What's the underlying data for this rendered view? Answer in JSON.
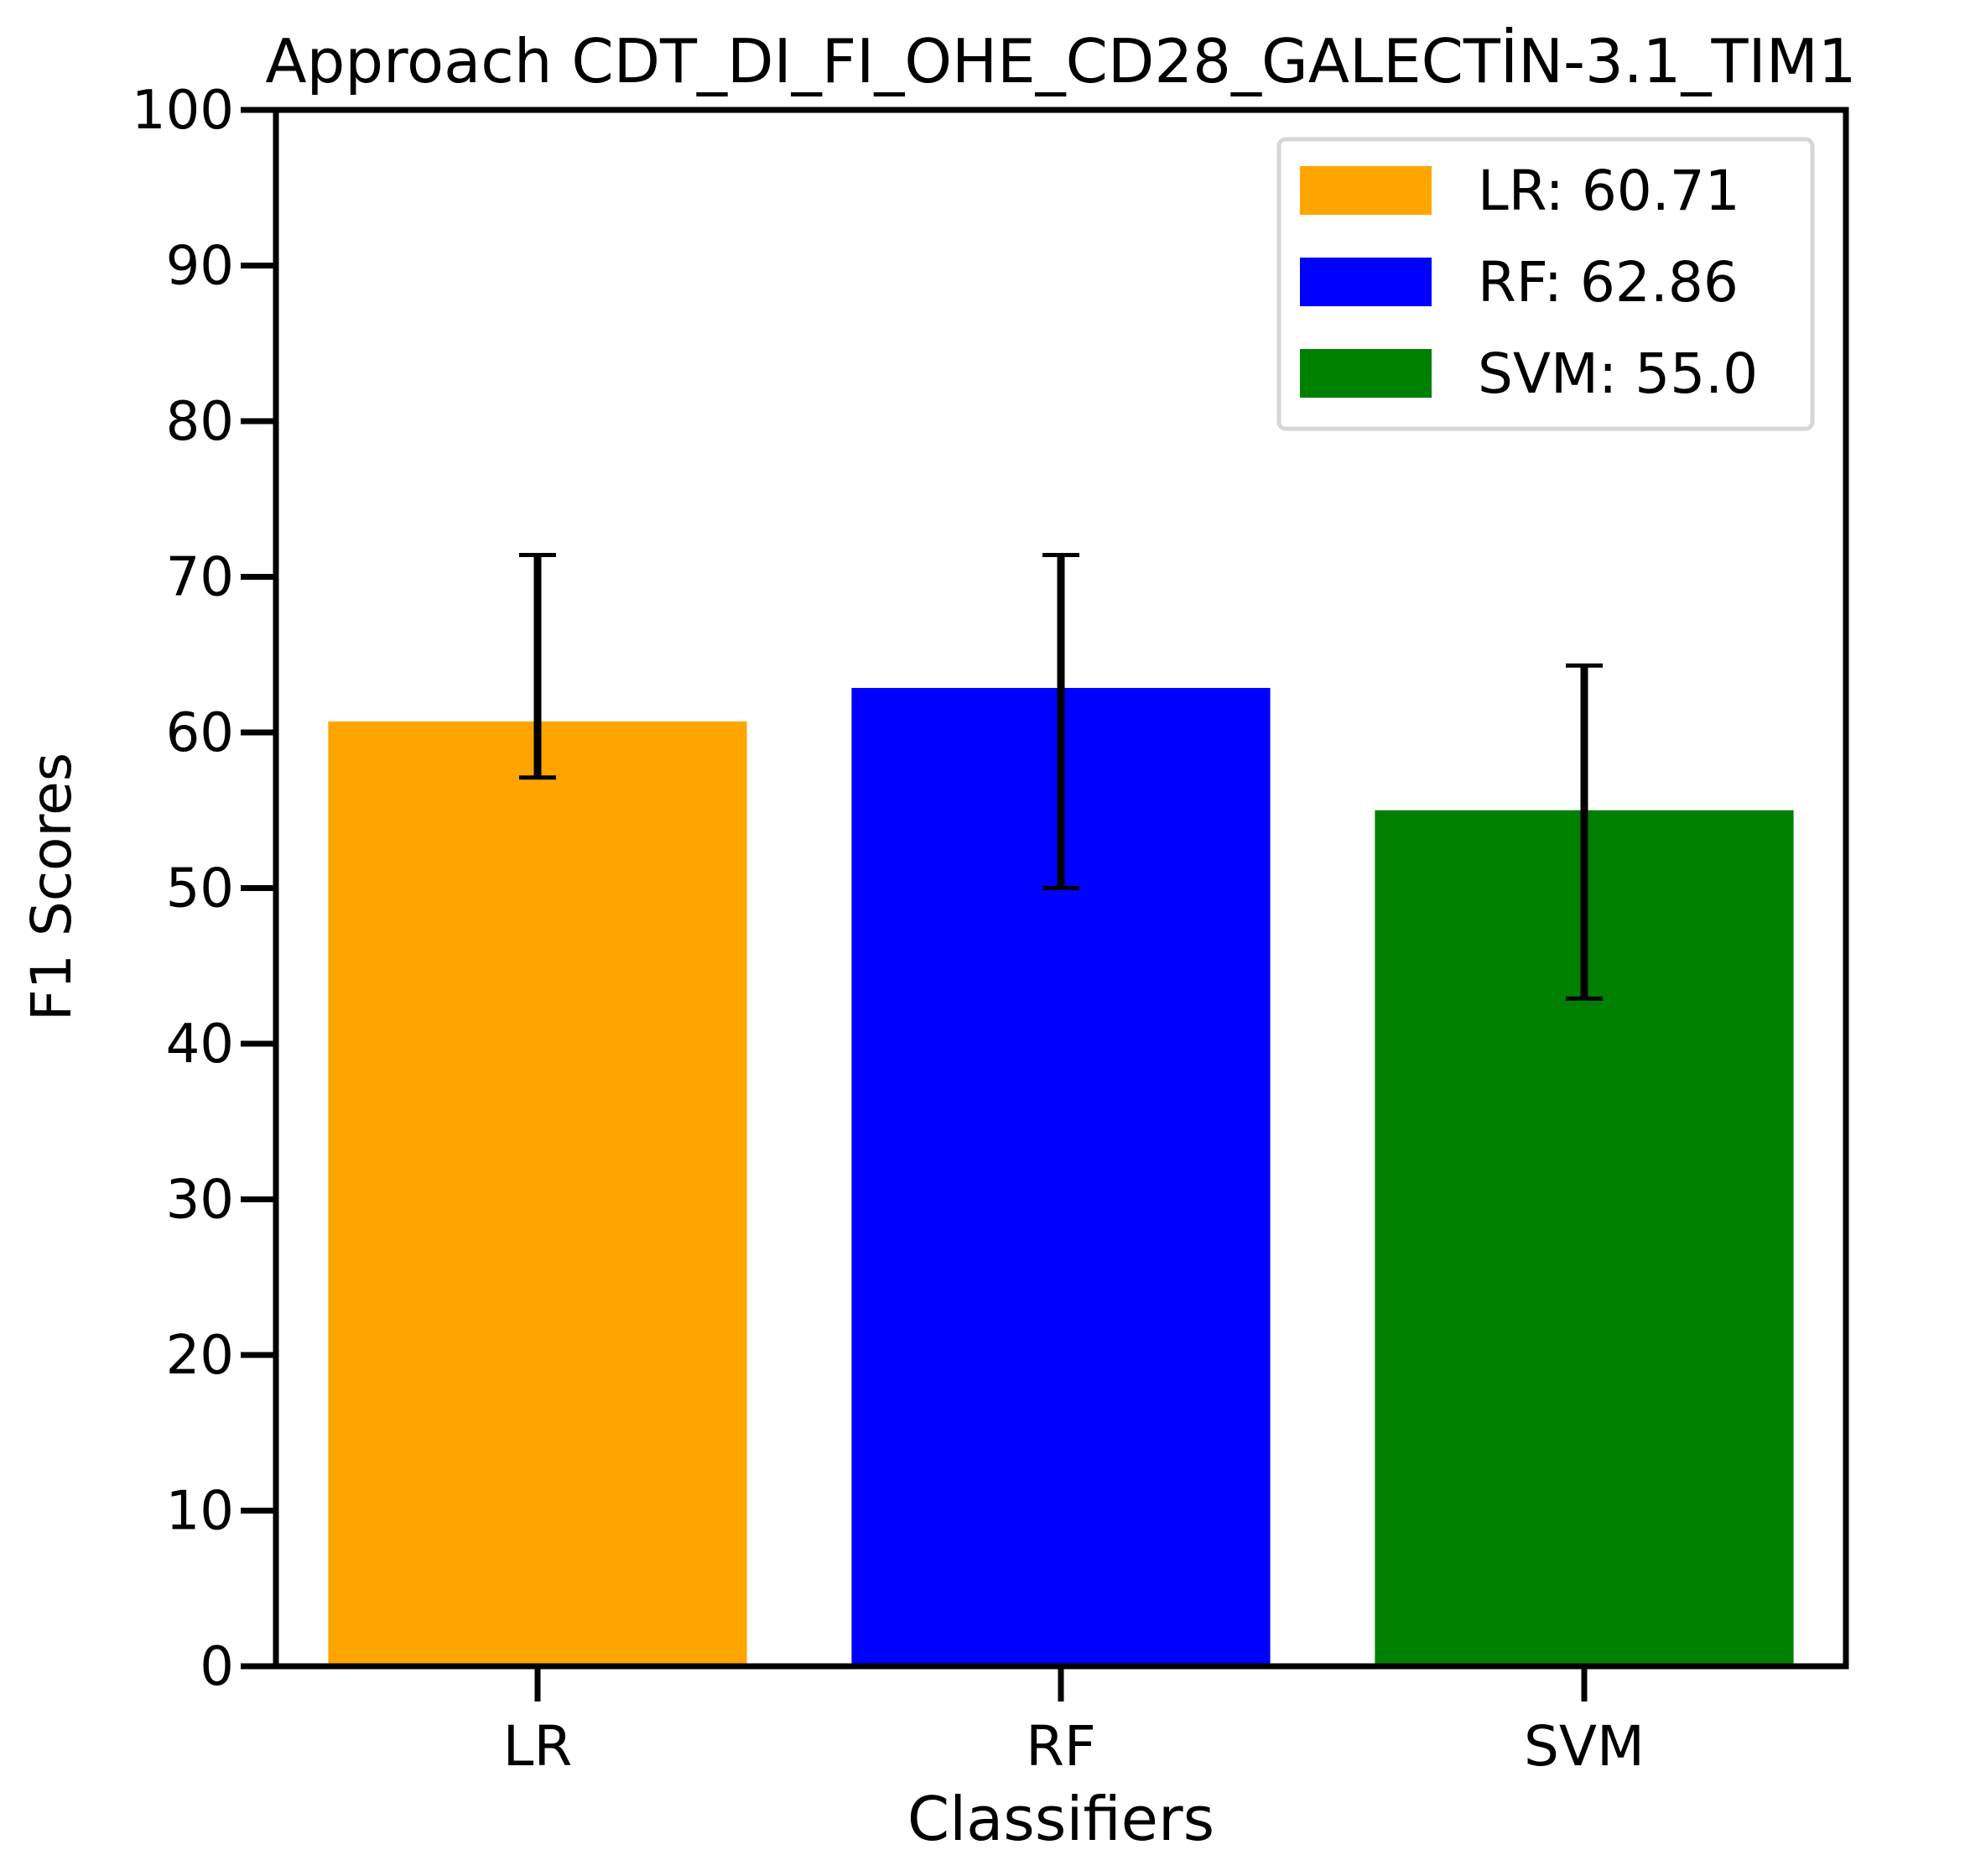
{
  "chart_data": {
    "type": "bar",
    "title": "Approach CDT_DI_FI_OHE_CD28_GALECTİN-3.1_TIM1",
    "xlabel": "Classifiers",
    "ylabel": "F1 Scores",
    "ylim": [
      0,
      100
    ],
    "yticks": [
      "0",
      "10",
      "20",
      "30",
      "40",
      "50",
      "60",
      "70",
      "80",
      "90",
      "100"
    ],
    "categories": [
      "LR",
      "RF",
      "SVM"
    ],
    "values": [
      60.71,
      62.86,
      55.0
    ],
    "error_low": [
      57.1,
      50.0,
      42.9
    ],
    "error_high": [
      71.4,
      71.4,
      64.3
    ],
    "colors": [
      "#FFA500",
      "#0000FF",
      "#008000"
    ],
    "grid": false,
    "legend": {
      "position": "top-right",
      "entries": [
        "LR: 60.71",
        "RF: 62.86",
        "SVM: 55.0"
      ]
    }
  }
}
